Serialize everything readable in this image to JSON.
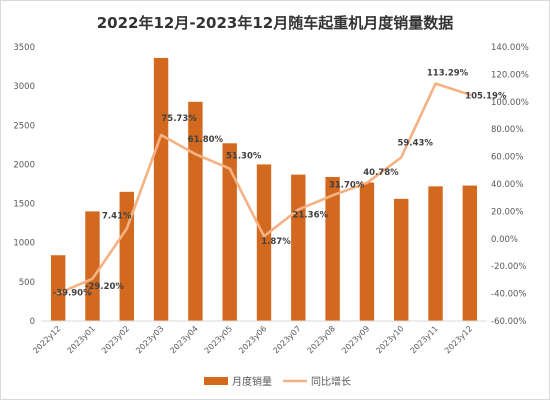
{
  "chart_data": {
    "type": "bar",
    "title": "2022年12月-2023年12月随车起重机月度销量数据",
    "categories": [
      "2022y12",
      "2023y01",
      "2023y02",
      "2023y03",
      "2023y04",
      "2023y05",
      "2023y06",
      "2023y07",
      "2023y08",
      "2023y09",
      "2023y10",
      "2023y11",
      "2023y12"
    ],
    "series": [
      {
        "name": "月度销量",
        "type": "bar",
        "axis": "left",
        "color": "#D2691E",
        "values": [
          840,
          1400,
          1650,
          3360,
          2800,
          2270,
          2000,
          1870,
          1840,
          1770,
          1560,
          1720,
          1730
        ]
      },
      {
        "name": "同比增长",
        "type": "line",
        "axis": "right",
        "color": "#F4B183",
        "values": [
          -39.9,
          -29.2,
          7.41,
          75.73,
          61.8,
          51.3,
          1.87,
          21.36,
          31.7,
          40.78,
          59.43,
          113.29,
          105.19
        ],
        "labels": [
          "-39.90%",
          "-29.20%",
          "7.41%",
          "75.73%",
          "61.80%",
          "51.30%",
          "1.87%",
          "21.36%",
          "31.70%",
          "40.78%",
          "59.43%",
          "113.29%",
          "105.19%"
        ]
      }
    ],
    "y_left": {
      "ylim": [
        0,
        3500
      ],
      "ticks": [
        0,
        500,
        1000,
        1500,
        2000,
        2500,
        3000,
        3500
      ],
      "tick_labels": [
        "0",
        "500",
        "1000",
        "1500",
        "2000",
        "2500",
        "3000",
        "3500"
      ]
    },
    "y_right": {
      "ylim": [
        -60,
        140
      ],
      "ticks": [
        -60,
        -40,
        -20,
        0,
        20,
        40,
        60,
        80,
        100,
        120,
        140
      ],
      "tick_labels": [
        "-60.00%",
        "-40.00%",
        "-20.00%",
        "0.00%",
        "20.00%",
        "40.00%",
        "60.00%",
        "80.00%",
        "100.00%",
        "120.00%",
        "140.00%"
      ]
    },
    "grid": false,
    "legend_position": "bottom"
  }
}
